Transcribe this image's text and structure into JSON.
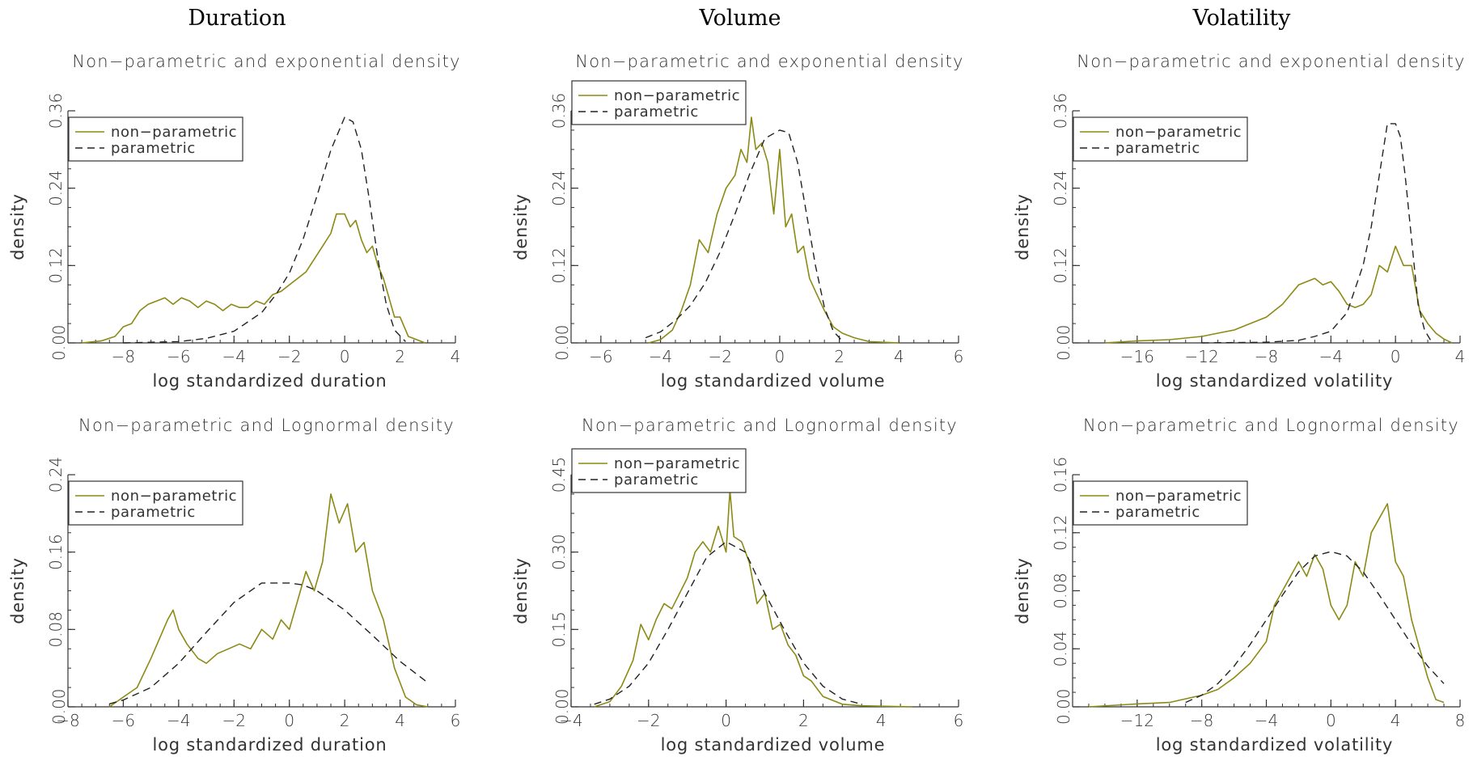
{
  "columns": [
    "Duration",
    "Volume",
    "Volatility"
  ],
  "colors": {
    "nonparametric": "#8c8a14",
    "parametric": "#222222",
    "axis": "#333333"
  },
  "chart_data": [
    {
      "type": "line",
      "title": "Non−parametric and exponential density",
      "xlabel": "log standardized duration",
      "ylabel": "density",
      "xlim": [
        -10,
        4
      ],
      "ylim": [
        0,
        0.36
      ],
      "xticks": [
        -8,
        -6,
        -4,
        -2,
        0,
        2,
        4
      ],
      "yticks": [
        0,
        0.12,
        0.24,
        0.36
      ],
      "ytick_labels": [
        "0.00",
        "0.12",
        "0.24",
        "0.36"
      ],
      "xtick_labels": [
        "−8",
        "−6",
        "−4",
        "−2",
        "0",
        "2",
        "4"
      ],
      "legend_placement": "top-left",
      "series": [
        {
          "name": "non−parametric",
          "style": "solid",
          "x": [
            -9.5,
            -8.8,
            -8.3,
            -8.0,
            -7.7,
            -7.4,
            -7.1,
            -6.8,
            -6.5,
            -6.2,
            -5.9,
            -5.6,
            -5.3,
            -5.0,
            -4.7,
            -4.4,
            -4.1,
            -3.8,
            -3.5,
            -3.2,
            -2.9,
            -2.6,
            -2.3,
            -2.0,
            -1.7,
            -1.4,
            -1.1,
            -0.8,
            -0.5,
            -0.3,
            0.0,
            0.2,
            0.4,
            0.6,
            0.8,
            1.0,
            1.2,
            1.4,
            1.6,
            1.8,
            2.0,
            2.3,
            2.6,
            2.9
          ],
          "y": [
            0.0,
            0.003,
            0.01,
            0.025,
            0.03,
            0.05,
            0.06,
            0.065,
            0.07,
            0.06,
            0.07,
            0.065,
            0.055,
            0.065,
            0.06,
            0.05,
            0.06,
            0.055,
            0.055,
            0.065,
            0.06,
            0.075,
            0.08,
            0.09,
            0.1,
            0.11,
            0.13,
            0.15,
            0.17,
            0.2,
            0.2,
            0.18,
            0.19,
            0.16,
            0.14,
            0.15,
            0.12,
            0.1,
            0.07,
            0.04,
            0.04,
            0.01,
            0.005,
            0.0
          ]
        },
        {
          "name": "parametric",
          "style": "dashed",
          "x": [
            -8.0,
            -7.0,
            -6.0,
            -5.0,
            -4.0,
            -3.0,
            -2.5,
            -2.0,
            -1.5,
            -1.0,
            -0.5,
            0.0,
            0.3,
            0.6,
            0.9,
            1.2,
            1.5,
            1.8,
            2.2
          ],
          "y": [
            0.0,
            0.001,
            0.002,
            0.007,
            0.018,
            0.047,
            0.074,
            0.108,
            0.161,
            0.228,
            0.299,
            0.35,
            0.343,
            0.3,
            0.22,
            0.13,
            0.06,
            0.02,
            0.002
          ]
        }
      ]
    },
    {
      "type": "line",
      "title": "Non−parametric and exponential density",
      "xlabel": "log standardized volume",
      "ylabel": "density",
      "xlim": [
        -7,
        6
      ],
      "ylim": [
        0,
        0.36
      ],
      "xticks": [
        -6,
        -4,
        -2,
        0,
        2,
        4,
        6
      ],
      "yticks": [
        0,
        0.12,
        0.24,
        0.36
      ],
      "ytick_labels": [
        "0.00",
        "0.12",
        "0.24",
        "0.36"
      ],
      "xtick_labels": [
        "−6",
        "−4",
        "−2",
        "0",
        "2",
        "4",
        "6"
      ],
      "legend_placement": "top-left",
      "series": [
        {
          "name": "non−parametric",
          "style": "solid",
          "x": [
            -4.4,
            -4.0,
            -3.6,
            -3.3,
            -3.0,
            -2.7,
            -2.4,
            -2.1,
            -1.8,
            -1.5,
            -1.3,
            -1.1,
            -0.95,
            -0.8,
            -0.6,
            -0.4,
            -0.2,
            0.0,
            0.2,
            0.4,
            0.6,
            0.8,
            1.0,
            1.2,
            1.5,
            1.8,
            2.1,
            2.5,
            3.0,
            4.0
          ],
          "y": [
            0.0,
            0.005,
            0.02,
            0.05,
            0.09,
            0.16,
            0.14,
            0.2,
            0.24,
            0.26,
            0.3,
            0.28,
            0.35,
            0.3,
            0.31,
            0.28,
            0.2,
            0.3,
            0.18,
            0.2,
            0.14,
            0.15,
            0.1,
            0.08,
            0.05,
            0.025,
            0.015,
            0.008,
            0.002,
            0.0
          ]
        },
        {
          "name": "parametric",
          "style": "dashed",
          "x": [
            -4.5,
            -4.0,
            -3.5,
            -3.0,
            -2.5,
            -2.0,
            -1.5,
            -1.0,
            -0.5,
            0.0,
            0.3,
            0.6,
            0.9,
            1.2,
            1.5,
            1.8,
            2.1
          ],
          "y": [
            0.008,
            0.017,
            0.035,
            0.058,
            0.093,
            0.141,
            0.2,
            0.263,
            0.317,
            0.33,
            0.326,
            0.28,
            0.2,
            0.12,
            0.055,
            0.018,
            0.003
          ]
        }
      ]
    },
    {
      "type": "line",
      "title": "Non−parametric and exponential density",
      "xlabel": "log standardized volatility",
      "ylabel": "density",
      "xlim": [
        -20,
        4
      ],
      "ylim": [
        0,
        0.36
      ],
      "xticks": [
        -16,
        -12,
        -8,
        -4,
        0,
        4
      ],
      "yticks": [
        0,
        0.12,
        0.24,
        0.36
      ],
      "ytick_labels": [
        "0.00",
        "0.12",
        "0.24",
        "0.36"
      ],
      "xtick_labels": [
        "−16",
        "−12",
        "−8",
        "−4",
        "0",
        "4"
      ],
      "legend_placement": "top-left",
      "series": [
        {
          "name": "non−parametric",
          "style": "solid",
          "x": [
            -18.0,
            -16.0,
            -14.0,
            -12.0,
            -11.0,
            -10.0,
            -9.0,
            -8.0,
            -7.0,
            -6.5,
            -6.0,
            -5.5,
            -5.0,
            -4.5,
            -4.0,
            -3.5,
            -3.0,
            -2.5,
            -2.0,
            -1.5,
            -1.0,
            -0.5,
            0.0,
            0.5,
            1.0,
            1.5,
            2.0,
            2.5,
            3.0,
            3.5
          ],
          "y": [
            0.0,
            0.003,
            0.005,
            0.01,
            0.015,
            0.02,
            0.03,
            0.04,
            0.06,
            0.075,
            0.09,
            0.095,
            0.1,
            0.09,
            0.095,
            0.08,
            0.06,
            0.055,
            0.06,
            0.075,
            0.12,
            0.11,
            0.15,
            0.12,
            0.12,
            0.05,
            0.03,
            0.015,
            0.006,
            0.0
          ]
        },
        {
          "name": "parametric",
          "style": "dashed",
          "x": [
            -12.0,
            -8.0,
            -6.0,
            -5.0,
            -4.0,
            -3.0,
            -2.0,
            -1.5,
            -1.0,
            -0.5,
            0.0,
            0.3,
            0.6,
            1.0,
            1.4,
            1.8,
            2.2
          ],
          "y": [
            0.0,
            0.001,
            0.004,
            0.01,
            0.018,
            0.047,
            0.121,
            0.18,
            0.26,
            0.34,
            0.34,
            0.32,
            0.26,
            0.16,
            0.06,
            0.02,
            0.003
          ]
        }
      ]
    },
    {
      "type": "line",
      "title": "Non−parametric and Lognormal density",
      "xlabel": "log standardized duration",
      "ylabel": "density",
      "xlim": [
        -8,
        6
      ],
      "ylim": [
        0,
        0.24
      ],
      "xticks": [
        -8,
        -6,
        -4,
        -2,
        0,
        2,
        4,
        6
      ],
      "yticks": [
        0,
        0.08,
        0.16,
        0.24
      ],
      "ytick_labels": [
        "0.00",
        "0.08",
        "0.16",
        "0.24"
      ],
      "xtick_labels": [
        "−8",
        "−6",
        "−4",
        "−2",
        "0",
        "2",
        "4",
        "6"
      ],
      "legend_placement": "top-left",
      "series": [
        {
          "name": "non−parametric",
          "style": "solid",
          "x": [
            -6.5,
            -6.0,
            -5.5,
            -5.0,
            -4.7,
            -4.4,
            -4.2,
            -4.0,
            -3.7,
            -3.3,
            -3.0,
            -2.6,
            -2.2,
            -1.8,
            -1.4,
            -1.0,
            -0.6,
            -0.3,
            0.0,
            0.3,
            0.6,
            0.9,
            1.2,
            1.5,
            1.8,
            2.1,
            2.4,
            2.7,
            3.0,
            3.4,
            3.8,
            4.2,
            4.6,
            5.0
          ],
          "y": [
            0.0,
            0.01,
            0.02,
            0.05,
            0.07,
            0.09,
            0.1,
            0.08,
            0.065,
            0.05,
            0.045,
            0.055,
            0.06,
            0.065,
            0.06,
            0.08,
            0.07,
            0.09,
            0.08,
            0.11,
            0.14,
            0.12,
            0.15,
            0.22,
            0.19,
            0.21,
            0.16,
            0.17,
            0.12,
            0.09,
            0.04,
            0.01,
            0.002,
            0.0
          ]
        },
        {
          "name": "parametric",
          "style": "dashed",
          "x": [
            -6.5,
            -6.0,
            -5.0,
            -4.0,
            -3.0,
            -2.0,
            -1.0,
            0.0,
            0.5,
            1.0,
            2.0,
            3.0,
            4.0,
            5.0
          ],
          "y": [
            0.003,
            0.007,
            0.02,
            0.045,
            0.077,
            0.108,
            0.128,
            0.128,
            0.126,
            0.12,
            0.1,
            0.074,
            0.047,
            0.025
          ]
        }
      ]
    },
    {
      "type": "line",
      "title": "Non−parametric and Lognormal density",
      "xlabel": "log standardized volume",
      "ylabel": "density",
      "xlim": [
        -4,
        6
      ],
      "ylim": [
        0,
        0.45
      ],
      "xticks": [
        -4,
        -2,
        0,
        2,
        4,
        6
      ],
      "yticks": [
        0,
        0.15,
        0.3,
        0.45
      ],
      "ytick_labels": [
        "0.00",
        "0.15",
        "0.30",
        "0.45"
      ],
      "xtick_labels": [
        "−4",
        "−2",
        "0",
        "2",
        "4",
        "6"
      ],
      "legend_placement": "top-left",
      "series": [
        {
          "name": "non−parametric",
          "style": "solid",
          "x": [
            -3.4,
            -3.0,
            -2.7,
            -2.4,
            -2.2,
            -2.0,
            -1.8,
            -1.6,
            -1.4,
            -1.2,
            -1.0,
            -0.8,
            -0.6,
            -0.4,
            -0.2,
            0.0,
            0.1,
            0.2,
            0.4,
            0.6,
            0.8,
            1.0,
            1.2,
            1.4,
            1.6,
            1.8,
            2.0,
            2.2,
            2.5,
            3.0,
            3.5,
            4.8
          ],
          "y": [
            0.0,
            0.01,
            0.04,
            0.09,
            0.16,
            0.13,
            0.17,
            0.2,
            0.19,
            0.22,
            0.25,
            0.3,
            0.32,
            0.3,
            0.35,
            0.3,
            0.42,
            0.33,
            0.32,
            0.28,
            0.2,
            0.22,
            0.15,
            0.16,
            0.12,
            0.1,
            0.06,
            0.05,
            0.02,
            0.005,
            0.002,
            0.0
          ]
        },
        {
          "name": "parametric",
          "style": "dashed",
          "x": [
            -3.4,
            -3.0,
            -2.5,
            -2.0,
            -1.5,
            -1.0,
            -0.5,
            0.0,
            0.5,
            1.0,
            1.5,
            2.0,
            2.5,
            3.0,
            3.5
          ],
          "y": [
            0.005,
            0.015,
            0.04,
            0.085,
            0.15,
            0.22,
            0.29,
            0.32,
            0.3,
            0.22,
            0.15,
            0.085,
            0.04,
            0.015,
            0.005
          ]
        }
      ]
    },
    {
      "type": "line",
      "title": "Non−parametric and Lognormal density",
      "xlabel": "log standardized volatility",
      "ylabel": "density",
      "xlim": [
        -16,
        8
      ],
      "ylim": [
        0,
        0.16
      ],
      "xticks": [
        -12,
        -8,
        -4,
        0,
        4,
        8
      ],
      "yticks": [
        0,
        0.04,
        0.08,
        0.12,
        0.16
      ],
      "ytick_labels": [
        "0.00",
        "0.04",
        "0.08",
        "0.12",
        "0.16"
      ],
      "xtick_labels": [
        "−12",
        "−8",
        "−4",
        "0",
        "4",
        "8"
      ],
      "legend_placement": "top-left",
      "series": [
        {
          "name": "non−parametric",
          "style": "solid",
          "x": [
            -15.0,
            -12.0,
            -10.0,
            -8.0,
            -7.0,
            -6.0,
            -5.0,
            -4.0,
            -3.5,
            -3.0,
            -2.5,
            -2.0,
            -1.5,
            -1.0,
            -0.5,
            0.0,
            0.5,
            1.0,
            1.5,
            2.0,
            2.5,
            3.0,
            3.5,
            4.0,
            4.5,
            5.0,
            5.5,
            6.0,
            6.5,
            7.0
          ],
          "y": [
            0.0,
            0.002,
            0.003,
            0.008,
            0.012,
            0.02,
            0.03,
            0.045,
            0.07,
            0.08,
            0.09,
            0.1,
            0.09,
            0.105,
            0.095,
            0.07,
            0.06,
            0.07,
            0.1,
            0.09,
            0.12,
            0.13,
            0.14,
            0.1,
            0.09,
            0.06,
            0.04,
            0.02,
            0.005,
            0.003
          ]
        },
        {
          "name": "parametric",
          "style": "dashed",
          "x": [
            -9.0,
            -8.0,
            -7.0,
            -6.0,
            -5.0,
            -4.0,
            -3.0,
            -2.0,
            -1.0,
            0.0,
            1.0,
            2.0,
            3.0,
            4.0,
            5.0,
            6.0,
            7.0
          ],
          "y": [
            0.003,
            0.008,
            0.016,
            0.028,
            0.043,
            0.06,
            0.077,
            0.093,
            0.104,
            0.107,
            0.104,
            0.093,
            0.077,
            0.06,
            0.043,
            0.028,
            0.016
          ]
        }
      ]
    }
  ]
}
